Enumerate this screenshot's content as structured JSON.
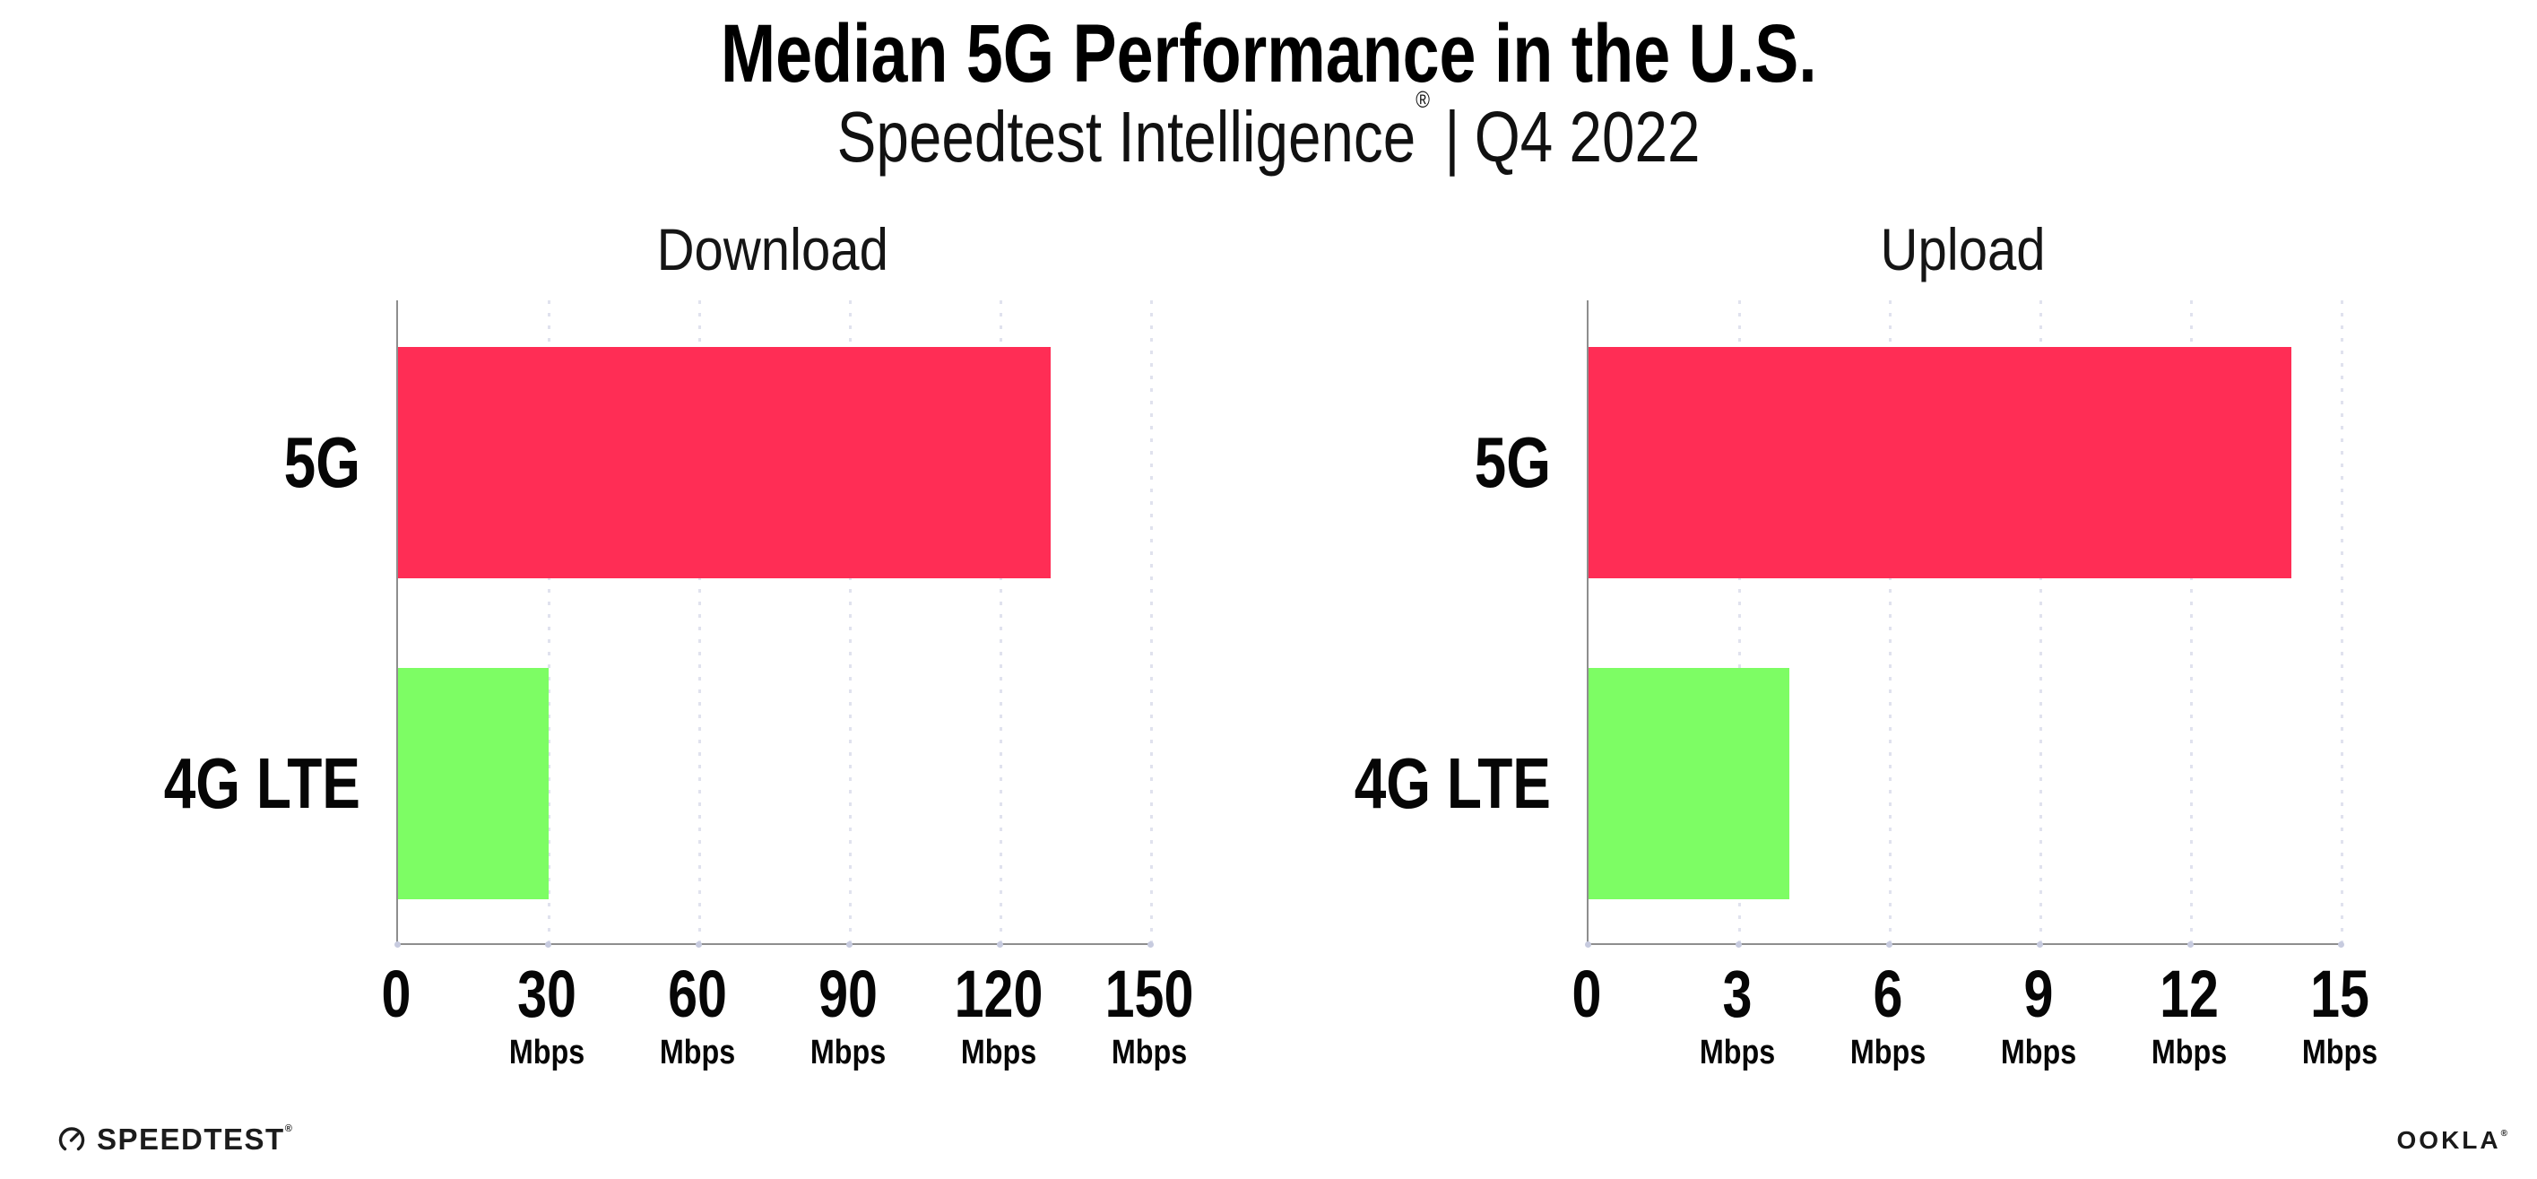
{
  "page": {
    "title": "Median 5G Performance in the U.S.",
    "subtitle": {
      "product": "Speedtest Intelligence",
      "registered_mark": "®",
      "separator": "|",
      "period": "Q4 2022"
    },
    "footer": {
      "speedtest_logo_text": "SPEEDTEST",
      "speedtest_trademark": "®",
      "ookla_logo_text": "OOKLA",
      "ookla_trademark": "®"
    }
  },
  "colors": {
    "bar_5g": "#FF2D55",
    "bar_4g_lte": "#7DFD64",
    "gridline_dots": "#E0E2EE",
    "axis": "#8E8E8E",
    "axis_tick_dot": "#C7CBDF",
    "text": "#0F0F0F"
  },
  "chart_data": [
    {
      "type": "bar",
      "orientation": "horizontal",
      "title": "Download",
      "categories": [
        "5G",
        "4G LTE"
      ],
      "values": [
        130,
        30
      ],
      "unit": "Mbps",
      "xlim": [
        0,
        150
      ],
      "xticks": [
        0,
        30,
        60,
        90,
        120,
        150
      ],
      "tick_unit_label": "Mbps",
      "unit_hidden_for_tick": 0,
      "grid": "dotted-vertical",
      "legend": "none",
      "bar_colors": [
        "#FF2D55",
        "#7DFD64"
      ]
    },
    {
      "type": "bar",
      "orientation": "horizontal",
      "title": "Upload",
      "categories": [
        "5G",
        "4G LTE"
      ],
      "values": [
        14,
        4
      ],
      "unit": "Mbps",
      "xlim": [
        0,
        15
      ],
      "xticks": [
        0,
        3,
        6,
        9,
        12,
        15
      ],
      "tick_unit_label": "Mbps",
      "unit_hidden_for_tick": 0,
      "grid": "dotted-vertical",
      "legend": "none",
      "bar_colors": [
        "#FF2D55",
        "#7DFD64"
      ]
    }
  ]
}
